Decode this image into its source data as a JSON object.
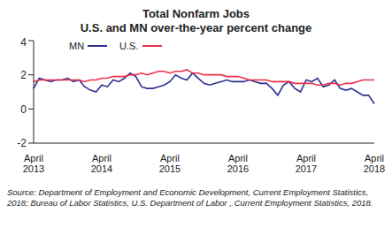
{
  "chart_data": {
    "type": "line",
    "title": "Total Nonfarm Jobs",
    "subtitle": "U.S. and MN over-the-year percent change",
    "annotations": [
      "Source: Department of Employment and Economic Development, Current Employment Statistics, 2018; Bureau of Labor Statistics, U.S. Department of Labor , Current Employment Statistics, 2018."
    ],
    "categories": [
      "April 2013",
      null,
      null,
      null,
      null,
      null,
      null,
      null,
      null,
      null,
      null,
      null,
      "April 2014",
      null,
      null,
      null,
      null,
      null,
      null,
      null,
      null,
      null,
      null,
      null,
      "April 2015",
      null,
      null,
      null,
      null,
      null,
      null,
      null,
      null,
      null,
      null,
      null,
      "April 2016",
      null,
      null,
      null,
      null,
      null,
      null,
      null,
      null,
      null,
      null,
      null,
      "April 2017",
      null,
      null,
      null,
      null,
      null,
      null,
      null,
      null,
      null,
      null,
      null,
      "April 2018"
    ],
    "series": [
      {
        "name": "MN",
        "color": "#2e3192",
        "values": [
          1.2,
          1.8,
          1.7,
          1.6,
          1.7,
          1.7,
          1.8,
          1.6,
          1.7,
          1.3,
          1.1,
          1.0,
          1.4,
          1.3,
          1.7,
          1.6,
          1.8,
          2.1,
          1.9,
          1.3,
          1.2,
          1.2,
          1.3,
          1.4,
          1.6,
          2.0,
          1.8,
          1.7,
          2.1,
          1.8,
          1.5,
          1.4,
          1.5,
          1.6,
          1.7,
          1.6,
          1.6,
          1.6,
          1.7,
          1.6,
          1.5,
          1.5,
          1.2,
          0.8,
          1.4,
          1.6,
          1.2,
          1.0,
          1.7,
          1.6,
          1.8,
          1.3,
          1.4,
          1.7,
          1.2,
          1.1,
          1.2,
          1.0,
          0.8,
          0.8,
          0.3
        ]
      },
      {
        "name": "U.S.",
        "color": "#e8314a",
        "values": [
          1.6,
          1.7,
          1.7,
          1.7,
          1.7,
          1.7,
          1.7,
          1.7,
          1.7,
          1.6,
          1.7,
          1.7,
          1.8,
          1.8,
          1.9,
          1.9,
          1.9,
          2.0,
          2.0,
          2.1,
          2.0,
          2.1,
          2.2,
          2.2,
          2.1,
          2.2,
          2.2,
          2.3,
          2.1,
          2.1,
          2.0,
          2.0,
          2.0,
          2.0,
          1.9,
          1.9,
          1.9,
          1.8,
          1.7,
          1.7,
          1.7,
          1.7,
          1.6,
          1.6,
          1.6,
          1.6,
          1.5,
          1.5,
          1.5,
          1.5,
          1.4,
          1.4,
          1.5,
          1.5,
          1.4,
          1.5,
          1.5,
          1.6,
          1.7,
          1.7,
          1.7
        ]
      }
    ],
    "ylim": [
      -2,
      4
    ],
    "yticks": [
      -2,
      0,
      2,
      4
    ],
    "grid": false,
    "legend": "upper left"
  }
}
